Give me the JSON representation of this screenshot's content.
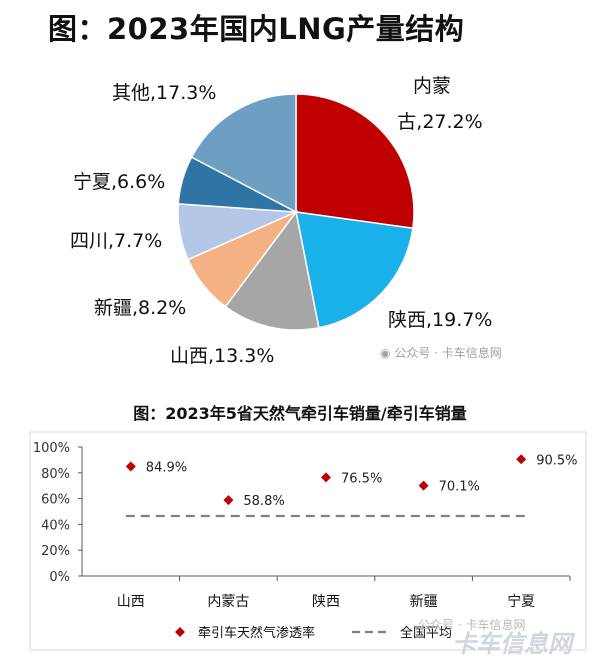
{
  "title1": "图：2023年国内LNG产量结构",
  "title2": "图：2023年5省天然气牵引车销量/牵引车销量",
  "watermark_text": "公众号 · 卡车信息网",
  "watermark_text2": "公众号 · 卡车信息网",
  "watermark_logo": "卡车信息网",
  "chart_data": [
    {
      "type": "pie",
      "title": "图：2023年国内LNG产量结构",
      "slices": [
        {
          "name": "内蒙古",
          "value": 27.2,
          "label": "内蒙古,27.2%",
          "color": "#c00000"
        },
        {
          "name": "陕西",
          "value": 19.7,
          "label": "陕西,19.7%",
          "color": "#1ab0ea"
        },
        {
          "name": "山西",
          "value": 13.3,
          "label": "山西,13.3%",
          "color": "#a6a6a6"
        },
        {
          "name": "新疆",
          "value": 8.2,
          "label": "新疆,8.2%",
          "color": "#f4b183"
        },
        {
          "name": "四川",
          "value": 7.7,
          "label": "四川,7.7%",
          "color": "#b4c7e7"
        },
        {
          "name": "宁夏",
          "value": 6.6,
          "label": "宁夏,6.6%",
          "color": "#2e75a6"
        },
        {
          "name": "其他",
          "value": 17.3,
          "label": "其他,17.3%",
          "color": "#6d9fc2"
        }
      ]
    },
    {
      "type": "scatter",
      "title": "图：2023年5省天然气牵引车销量/牵引车销量",
      "categories": [
        "山西",
        "内蒙古",
        "陕西",
        "新疆",
        "宁夏"
      ],
      "series": [
        {
          "name": "牵引车天然气渗透率",
          "values": [
            84.9,
            58.8,
            76.5,
            70.1,
            90.5
          ],
          "labels": [
            "84.9%",
            "58.8%",
            "76.5%",
            "70.1%",
            "90.5%"
          ],
          "color": "#c00000",
          "marker": "diamond"
        },
        {
          "name": "全国平均",
          "value": 46.5,
          "color": "#808080",
          "style": "dashed"
        }
      ],
      "yticks": [
        "0%",
        "20%",
        "40%",
        "60%",
        "80%",
        "100%"
      ],
      "ylim": [
        0,
        100
      ]
    }
  ]
}
